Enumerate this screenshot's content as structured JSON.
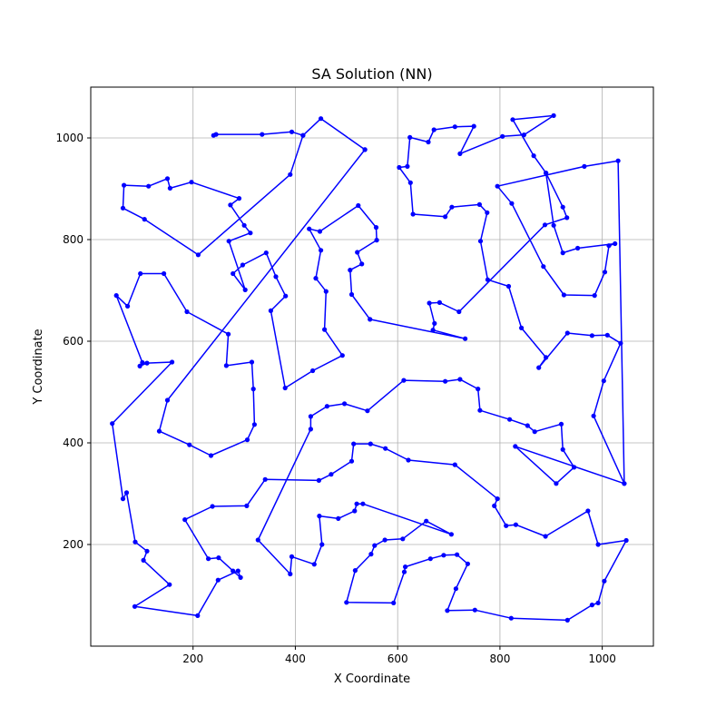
{
  "chart_data": {
    "type": "line",
    "title": "SA Solution (NN)",
    "xlabel": "X Coordinate",
    "ylabel": "Y Coordinate",
    "xlim": [
      0,
      1100
    ],
    "ylim": [
      0,
      1100
    ],
    "xticks": [
      200,
      400,
      600,
      800,
      1000
    ],
    "yticks": [
      200,
      400,
      600,
      800,
      1000
    ],
    "grid": true,
    "line_color": "#0000ff",
    "marker": "circle",
    "series": [
      {
        "name": "",
        "points": [
          [
            240,
            1005
          ],
          [
            245,
            1007
          ],
          [
            335,
            1007
          ],
          [
            393,
            1012
          ],
          [
            415,
            1005
          ],
          [
            390,
            928
          ],
          [
            210,
            770
          ],
          [
            105,
            840
          ],
          [
            63,
            862
          ],
          [
            65,
            907
          ],
          [
            113,
            905
          ],
          [
            150,
            920
          ],
          [
            155,
            901
          ],
          [
            197,
            913
          ],
          [
            290,
            881
          ],
          [
            273,
            868
          ],
          [
            300,
            828
          ],
          [
            312,
            813
          ],
          [
            270,
            797
          ],
          [
            302,
            701
          ],
          [
            278,
            733
          ],
          [
            297,
            750
          ],
          [
            343,
            774
          ],
          [
            362,
            727
          ],
          [
            381,
            689
          ],
          [
            352,
            660
          ],
          [
            380,
            508
          ],
          [
            434,
            542
          ],
          [
            492,
            572
          ],
          [
            457,
            623
          ],
          [
            460,
            698
          ],
          [
            440,
            724
          ],
          [
            450,
            779
          ],
          [
            427,
            821
          ],
          [
            448,
            816
          ],
          [
            523,
            867
          ],
          [
            558,
            824
          ],
          [
            559,
            799
          ],
          [
            521,
            775
          ],
          [
            530,
            752
          ],
          [
            507,
            740
          ],
          [
            510,
            692
          ],
          [
            546,
            643
          ],
          [
            732,
            605
          ],
          [
            669,
            622
          ],
          [
            672,
            635
          ],
          [
            662,
            675
          ],
          [
            682,
            676
          ],
          [
            720,
            658
          ],
          [
            888,
            829
          ],
          [
            931,
            843
          ],
          [
            923,
            864
          ],
          [
            890,
            931
          ],
          [
            866,
            965
          ],
          [
            825,
            1036
          ],
          [
            905,
            1044
          ],
          [
            847,
            1006
          ],
          [
            805,
            1003
          ],
          [
            722,
            969
          ],
          [
            749,
            1023
          ],
          [
            712,
            1022
          ],
          [
            671,
            1016
          ],
          [
            660,
            992
          ],
          [
            624,
            1001
          ],
          [
            619,
            944
          ],
          [
            603,
            942
          ],
          [
            625,
            912
          ],
          [
            630,
            850
          ],
          [
            693,
            845
          ],
          [
            706,
            864
          ],
          [
            760,
            869
          ],
          [
            775,
            853
          ],
          [
            762,
            797
          ],
          [
            776,
            721
          ],
          [
            817,
            708
          ],
          [
            842,
            626
          ],
          [
            890,
            568
          ],
          [
            876,
            548
          ],
          [
            932,
            616
          ],
          [
            980,
            611
          ],
          [
            1010,
            612
          ],
          [
            1036,
            596
          ],
          [
            1003,
            522
          ],
          [
            983,
            453
          ],
          [
            1043,
            320
          ],
          [
            1031,
            955
          ],
          [
            965,
            944
          ],
          [
            795,
            905
          ],
          [
            823,
            871
          ],
          [
            885,
            747
          ],
          [
            925,
            691
          ],
          [
            985,
            690
          ],
          [
            1005,
            736
          ],
          [
            1013,
            788
          ],
          [
            1025,
            792
          ],
          [
            952,
            783
          ],
          [
            923,
            774
          ],
          [
            905,
            828
          ],
          [
            890,
            931
          ]
        ]
      },
      {
        "name": "",
        "points": [
          [
            536,
            977
          ],
          [
            450,
            1038
          ],
          [
            415,
            1005
          ]
        ]
      },
      {
        "name": "",
        "points": [
          [
            536,
            977
          ],
          [
            150,
            484
          ],
          [
            134,
            423
          ],
          [
            193,
            396
          ],
          [
            235,
            375
          ],
          [
            306,
            406
          ],
          [
            320,
            436
          ],
          [
            318,
            506
          ],
          [
            315,
            559
          ],
          [
            265,
            552
          ],
          [
            269,
            614
          ],
          [
            188,
            658
          ],
          [
            143,
            733
          ],
          [
            97,
            733
          ],
          [
            72,
            669
          ],
          [
            50,
            690
          ],
          [
            101,
            558
          ],
          [
            96,
            551
          ],
          [
            110,
            557
          ],
          [
            159,
            559
          ],
          [
            42,
            438
          ],
          [
            63,
            290
          ],
          [
            70,
            302
          ],
          [
            87,
            205
          ],
          [
            110,
            187
          ],
          [
            103,
            169
          ],
          [
            154,
            121
          ],
          [
            86,
            78
          ],
          [
            209,
            60
          ],
          [
            249,
            130
          ],
          [
            288,
            148
          ],
          [
            293,
            135
          ],
          [
            278,
            148
          ],
          [
            250,
            174
          ],
          [
            230,
            172
          ],
          [
            184,
            249
          ],
          [
            238,
            275
          ],
          [
            305,
            276
          ],
          [
            341,
            328
          ],
          [
            446,
            326
          ],
          [
            470,
            338
          ],
          [
            510,
            364
          ],
          [
            514,
            398
          ],
          [
            547,
            398
          ],
          [
            576,
            389
          ],
          [
            621,
            366
          ],
          [
            712,
            357
          ],
          [
            795,
            290
          ],
          [
            789,
            276
          ],
          [
            812,
            237
          ],
          [
            831,
            239
          ],
          [
            889,
            216
          ],
          [
            972,
            266
          ],
          [
            992,
            200
          ],
          [
            1047,
            208
          ],
          [
            1004,
            128
          ],
          [
            992,
            85
          ],
          [
            980,
            81
          ],
          [
            932,
            51
          ],
          [
            822,
            55
          ],
          [
            751,
            71
          ],
          [
            697,
            70
          ],
          [
            714,
            113
          ],
          [
            737,
            162
          ],
          [
            716,
            180
          ],
          [
            690,
            179
          ],
          [
            664,
            172
          ],
          [
            615,
            156
          ],
          [
            613,
            146
          ],
          [
            592,
            85
          ],
          [
            500,
            86
          ],
          [
            517,
            149
          ],
          [
            548,
            181
          ],
          [
            555,
            198
          ],
          [
            575,
            209
          ],
          [
            610,
            211
          ],
          [
            656,
            246
          ],
          [
            705,
            220
          ],
          [
            532,
            280
          ],
          [
            520,
            280
          ],
          [
            516,
            266
          ],
          [
            484,
            251
          ],
          [
            447,
            256
          ],
          [
            452,
            200
          ],
          [
            437,
            161
          ],
          [
            393,
            176
          ],
          [
            390,
            142
          ],
          [
            327,
            209
          ],
          [
            430,
            427
          ],
          [
            430,
            452
          ],
          [
            462,
            472
          ],
          [
            496,
            477
          ],
          [
            541,
            463
          ],
          [
            612,
            523
          ],
          [
            693,
            521
          ],
          [
            722,
            525
          ],
          [
            757,
            506
          ],
          [
            761,
            464
          ],
          [
            819,
            446
          ],
          [
            854,
            434
          ],
          [
            868,
            422
          ],
          [
            920,
            437
          ],
          [
            923,
            387
          ],
          [
            945,
            352
          ],
          [
            910,
            320
          ],
          [
            830,
            393
          ],
          [
            1043,
            320
          ]
        ]
      }
    ]
  }
}
